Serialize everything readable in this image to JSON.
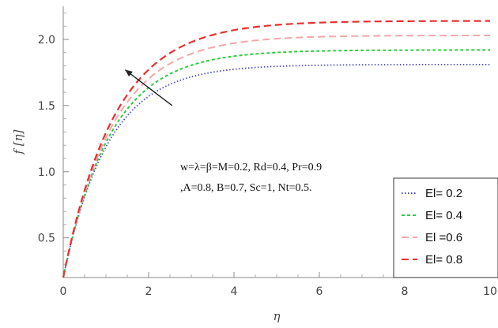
{
  "chart_data": {
    "type": "line",
    "xlabel": "η",
    "ylabel": "f [η]",
    "xlim": [
      0,
      10
    ],
    "ylim": [
      0.2,
      2.25
    ],
    "x_ticks": [
      0,
      2,
      4,
      6,
      8,
      10
    ],
    "x_tick_labels": [
      "0",
      "2",
      "4",
      "6",
      "8",
      "10"
    ],
    "y_ticks": [
      0.5,
      1.0,
      1.5,
      2.0
    ],
    "y_tick_labels": [
      "0.5",
      "1.0",
      "1.5",
      "2.0"
    ],
    "grid": false,
    "legend_placement": "bottom-right",
    "annotation_lines": [
      "w=λ=β=M=0.2, Rd=0.4, Pr=0.9",
      ",A=0.8, B=0.7, Sc=1, Nt=0.5."
    ],
    "arrow": {
      "from": [
        2.55,
        1.5
      ],
      "to": [
        1.45,
        1.77
      ]
    },
    "series": [
      {
        "name": "El= 0.2",
        "color": "#4a4ad0",
        "dash": "dotted",
        "asymptote": 1.81,
        "k": 0.95
      },
      {
        "name": "El= 0.4",
        "color": "#2ecc40",
        "dash": "dashed-short",
        "asymptote": 1.92,
        "k": 0.9
      },
      {
        "name": "El =0.6",
        "color": "#f4a7a7",
        "dash": "dashed",
        "asymptote": 2.03,
        "k": 0.86
      },
      {
        "name": "El= 0.8",
        "color": "#e83030",
        "dash": "dashed",
        "asymptote": 2.14,
        "k": 0.83
      }
    ]
  }
}
